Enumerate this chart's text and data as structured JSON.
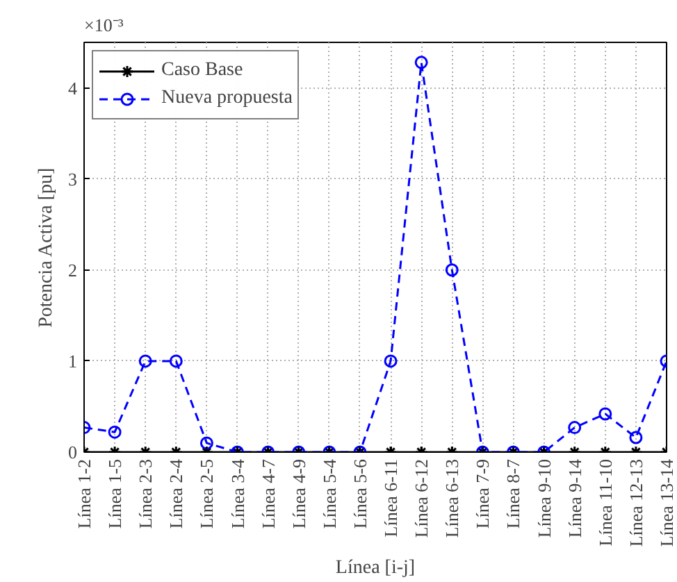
{
  "chart_data": {
    "type": "line",
    "xlabel": "Línea [i-j]",
    "ylabel": "Potencia Activa [pu]",
    "annotations": [
      "×10⁻³"
    ],
    "categories": [
      "Línea 1-2",
      "Línea 1-5",
      "Línea 2-3",
      "Línea 2-4",
      "Línea 2-5",
      "Línea 3-4",
      "Línea 4-7",
      "Línea 4-9",
      "Línea 5-4",
      "Línea 5-6",
      "Línea 6-11",
      "Línea 6-12",
      "Línea 6-13",
      "Línea 7-9",
      "Línea 8-7",
      "Línea 9-10",
      "Línea 9-14",
      "Línea 11-10",
      "Línea 12-13",
      "Línea 13-14"
    ],
    "series": [
      {
        "name": "Caso Base",
        "color": "#000000",
        "marker": "cross",
        "line_style": "solid",
        "values": [
          0,
          0,
          0,
          0,
          0,
          0,
          0,
          0,
          0,
          0,
          0,
          0,
          0,
          0,
          0,
          0,
          0,
          0,
          0,
          0
        ]
      },
      {
        "name": "Nueva propuesta",
        "color": "#0000ff",
        "marker": "circle",
        "line_style": "dashed",
        "values": [
          0.27,
          0.22,
          1.0,
          1.0,
          0.1,
          0,
          0,
          0,
          0,
          0,
          1.0,
          4.28,
          2.0,
          0,
          0,
          0,
          0.27,
          0.42,
          0.16,
          1.0
        ]
      }
    ],
    "ylim": [
      0,
      4.5
    ],
    "yticks": [
      0,
      1,
      2,
      3,
      4
    ],
    "grid": true,
    "legend": "top left"
  }
}
